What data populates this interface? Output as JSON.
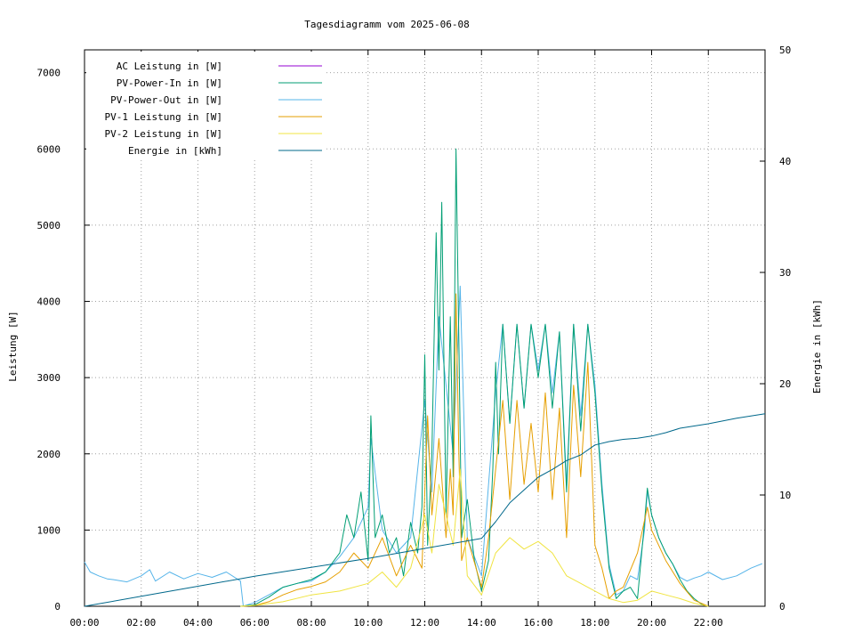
{
  "chart_data": {
    "type": "line",
    "title": "Tagesdiagramm vom 2025-06-08",
    "ylabel": "Leistung [W]",
    "y2label": "Energie in [kWh]",
    "x_unit": "hour of day",
    "xlim": [
      0,
      24
    ],
    "ylim": [
      0,
      7300
    ],
    "y2lim": [
      0,
      50
    ],
    "x_ticks": [
      0,
      2,
      4,
      6,
      8,
      10,
      12,
      14,
      16,
      18,
      20,
      22
    ],
    "x_tick_labels": [
      "00:00",
      "02:00",
      "04:00",
      "06:00",
      "08:00",
      "10:00",
      "12:00",
      "14:00",
      "16:00",
      "18:00",
      "20:00",
      "22:00"
    ],
    "y_ticks": [
      0,
      1000,
      2000,
      3000,
      4000,
      5000,
      6000,
      7000
    ],
    "y_tick_labels": [
      "0",
      "1000",
      "2000",
      "3000",
      "4000",
      "5000",
      "6000",
      "7000"
    ],
    "y2_ticks": [
      0,
      10,
      20,
      30,
      40,
      50
    ],
    "y2_tick_labels": [
      "0",
      "10",
      "20",
      "30",
      "40",
      "50"
    ],
    "grid": true,
    "legend_position": "top-left",
    "series": [
      {
        "name": "AC Leistung in [W]",
        "color": "#9400d3",
        "axis": "left",
        "x": [],
        "y": []
      },
      {
        "name": "PV-Power-In in [W]",
        "color": "#009e73",
        "axis": "left",
        "x": [
          5.5,
          6.0,
          6.5,
          7.0,
          7.5,
          8.0,
          8.5,
          9.0,
          9.25,
          9.5,
          9.75,
          10.0,
          10.1,
          10.25,
          10.5,
          10.75,
          11.0,
          11.25,
          11.5,
          11.75,
          11.9,
          12.0,
          12.1,
          12.25,
          12.4,
          12.5,
          12.6,
          12.75,
          12.9,
          13.0,
          13.1,
          13.2,
          13.3,
          13.5,
          13.75,
          14.0,
          14.25,
          14.4,
          14.5,
          14.6,
          14.75,
          15.0,
          15.25,
          15.5,
          15.75,
          16.0,
          16.25,
          16.5,
          16.75,
          17.0,
          17.25,
          17.5,
          17.75,
          18.0,
          18.25,
          18.5,
          18.75,
          19.0,
          19.25,
          19.5,
          19.75,
          19.85,
          20.0,
          20.25,
          20.5,
          20.75,
          21.0,
          21.25,
          21.5,
          21.75,
          22.0
        ],
        "y": [
          0,
          20,
          120,
          250,
          300,
          350,
          450,
          700,
          1200,
          900,
          1500,
          600,
          2500,
          900,
          1200,
          700,
          900,
          400,
          1100,
          700,
          1300,
          3300,
          800,
          2000,
          4900,
          3100,
          5300,
          1200,
          3800,
          1700,
          6000,
          3500,
          900,
          1400,
          600,
          200,
          600,
          1800,
          3200,
          2000,
          3700,
          2400,
          3700,
          2600,
          3700,
          3000,
          3700,
          2600,
          3600,
          1500,
          3700,
          2300,
          3700,
          2800,
          1500,
          500,
          100,
          200,
          250,
          100,
          1100,
          1550,
          1200,
          900,
          700,
          550,
          350,
          200,
          100,
          30,
          0
        ]
      },
      {
        "name": "PV-Power-Out in [W]",
        "color": "#56b4e9",
        "axis": "left",
        "x": [
          0.0,
          0.2,
          0.5,
          0.8,
          1.0,
          1.5,
          2.0,
          2.3,
          2.5,
          3.0,
          3.5,
          4.0,
          4.5,
          5.0,
          5.5,
          5.6,
          6.0,
          6.5,
          7.0,
          7.5,
          8.0,
          8.5,
          9.0,
          9.5,
          10.0,
          10.1,
          10.5,
          11.0,
          11.5,
          12.0,
          12.25,
          12.5,
          13.0,
          13.25,
          13.5,
          14.0,
          14.25,
          14.5,
          14.75,
          15.0,
          15.25,
          15.5,
          15.75,
          16.0,
          16.25,
          16.5,
          16.75,
          17.0,
          17.25,
          17.5,
          17.75,
          18.0,
          18.25,
          18.5,
          18.75,
          19.0,
          19.25,
          19.5,
          19.75,
          19.85,
          20.0,
          20.25,
          20.5,
          20.75,
          21.0,
          21.25,
          21.5,
          21.75,
          22.0,
          22.5,
          23.0,
          23.5,
          23.9
        ],
        "y": [
          580,
          450,
          400,
          360,
          350,
          320,
          400,
          480,
          330,
          450,
          360,
          430,
          380,
          450,
          330,
          0,
          50,
          150,
          250,
          300,
          330,
          450,
          650,
          900,
          1300,
          2200,
          1000,
          700,
          900,
          2700,
          1500,
          3800,
          2000,
          4200,
          900,
          400,
          1600,
          2800,
          3700,
          2400,
          3700,
          2600,
          3700,
          3100,
          3700,
          2800,
          3600,
          1600,
          3700,
          2500,
          3700,
          2900,
          1600,
          550,
          150,
          200,
          400,
          350,
          1000,
          1500,
          1200,
          900,
          700,
          550,
          380,
          330,
          370,
          400,
          450,
          350,
          400,
          500,
          560
        ]
      },
      {
        "name": "PV-1 Leistung in [W]",
        "color": "#e69f00",
        "axis": "left",
        "x": [
          5.5,
          6.0,
          6.5,
          7.0,
          7.5,
          8.0,
          8.5,
          9.0,
          9.5,
          10.0,
          10.5,
          11.0,
          11.5,
          11.9,
          12.1,
          12.25,
          12.5,
          12.75,
          12.9,
          13.0,
          13.1,
          13.2,
          13.3,
          13.5,
          14.0,
          14.25,
          14.5,
          14.75,
          15.0,
          15.25,
          15.5,
          15.75,
          16.0,
          16.25,
          16.5,
          16.75,
          17.0,
          17.25,
          17.5,
          17.75,
          18.0,
          18.25,
          18.5,
          18.75,
          19.0,
          19.5,
          19.85,
          20.0,
          20.5,
          21.0,
          21.5,
          22.0
        ],
        "y": [
          0,
          10,
          60,
          150,
          220,
          260,
          320,
          450,
          700,
          500,
          900,
          400,
          800,
          500,
          2500,
          1200,
          2200,
          900,
          1800,
          1200,
          4100,
          2000,
          600,
          900,
          250,
          900,
          1800,
          2700,
          1400,
          2700,
          1600,
          2400,
          1500,
          2800,
          1400,
          2600,
          900,
          2900,
          1700,
          3200,
          800,
          500,
          100,
          200,
          250,
          700,
          1300,
          1000,
          600,
          300,
          80,
          0
        ]
      },
      {
        "name": "PV-2 Leistung in [W]",
        "color": "#f0e442",
        "axis": "left",
        "x": [
          5.5,
          6.0,
          7.0,
          8.0,
          9.0,
          10.0,
          10.5,
          11.0,
          11.5,
          12.0,
          12.25,
          12.5,
          13.0,
          13.25,
          13.5,
          14.0,
          14.5,
          15.0,
          15.5,
          16.0,
          16.5,
          17.0,
          17.5,
          18.0,
          18.5,
          19.0,
          19.5,
          20.0,
          20.5,
          21.0,
          21.5,
          22.0
        ],
        "y": [
          0,
          10,
          60,
          150,
          200,
          300,
          450,
          250,
          500,
          1200,
          700,
          1600,
          800,
          1800,
          400,
          150,
          700,
          900,
          750,
          850,
          700,
          400,
          300,
          200,
          100,
          50,
          80,
          200,
          150,
          100,
          40,
          0
        ]
      },
      {
        "name": "Energie in [kWh]",
        "color": "#00688b",
        "axis": "right",
        "x": [
          0,
          2,
          4,
          6,
          8,
          10,
          12,
          14,
          14.5,
          15,
          16,
          16.5,
          17,
          17.5,
          18,
          18.5,
          19,
          19.5,
          20,
          20.5,
          21,
          22,
          23,
          24
        ],
        "y": [
          0,
          0.9,
          1.8,
          2.7,
          3.5,
          4.3,
          5.2,
          6.1,
          7.6,
          9.3,
          11.6,
          12.3,
          13.1,
          13.6,
          14.5,
          14.8,
          15.0,
          15.1,
          15.3,
          15.6,
          16.0,
          16.4,
          16.9,
          17.3
        ]
      }
    ]
  }
}
